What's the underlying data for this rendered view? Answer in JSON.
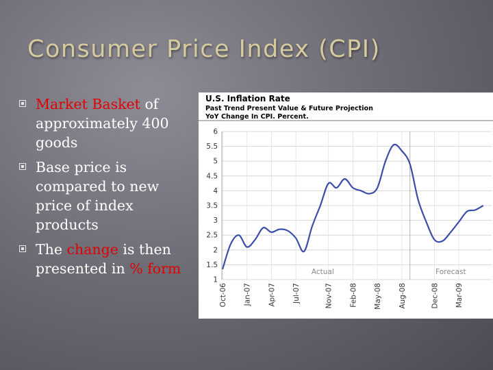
{
  "slide": {
    "title": "Consumer Price Index (CPI)"
  },
  "bullets": [
    {
      "parts": [
        {
          "text": "Market Basket",
          "highlight": true
        },
        {
          "text": " of approximately 400 goods",
          "highlight": false
        }
      ]
    },
    {
      "parts": [
        {
          "text": "Base price is compared to new price of index products",
          "highlight": false
        }
      ]
    },
    {
      "parts": [
        {
          "text": "The ",
          "highlight": false
        },
        {
          "text": "change",
          "highlight": true
        },
        {
          "text": " is then presented in ",
          "highlight": false
        },
        {
          "text": "% form",
          "highlight": true
        }
      ]
    }
  ],
  "colors": {
    "highlight": "#e00000",
    "line": "#3a4daa",
    "title": "#d6cb9e"
  },
  "chart_data": {
    "type": "line",
    "title": "U.S. Inflation Rate",
    "subtitle_lines": [
      "Past Trend Present Value & Future Projection",
      "YoY Change In CPI. Percent."
    ],
    "ylim": [
      1,
      6
    ],
    "yticks": [
      1,
      1.5,
      2,
      2.5,
      3,
      3.5,
      4,
      4.5,
      5,
      5.5,
      6
    ],
    "xtick_labels": [
      "Oct-06",
      "Jan-07",
      "Apr-07",
      "Jul-07",
      "Nov-07",
      "Feb-08",
      "May-08",
      "Aug-08",
      "Dec-08",
      "Mar-09"
    ],
    "grid": true,
    "annotations": [
      {
        "text": "Actual"
      },
      {
        "text": "Forecast"
      }
    ],
    "forecast_start": "Sep-08",
    "series": [
      {
        "points": [
          [
            "Oct-06",
            1.35
          ],
          [
            "Nov-06",
            2.2
          ],
          [
            "Dec-06",
            2.5
          ],
          [
            "Jan-07",
            2.1
          ],
          [
            "Feb-07",
            2.35
          ],
          [
            "Mar-07",
            2.75
          ],
          [
            "Apr-07",
            2.6
          ],
          [
            "May-07",
            2.7
          ],
          [
            "Jun-07",
            2.65
          ],
          [
            "Jul-07",
            2.4
          ],
          [
            "Aug-07",
            1.95
          ],
          [
            "Sep-07",
            2.8
          ],
          [
            "Oct-07",
            3.5
          ],
          [
            "Nov-07",
            4.25
          ],
          [
            "Dec-07",
            4.1
          ],
          [
            "Jan-08",
            4.4
          ],
          [
            "Feb-08",
            4.1
          ],
          [
            "Mar-08",
            4.0
          ],
          [
            "Apr-08",
            3.9
          ],
          [
            "May-08",
            4.1
          ],
          [
            "Jun-08",
            5.0
          ],
          [
            "Jul-08",
            5.55
          ],
          [
            "Aug-08",
            5.35
          ],
          [
            "Sep-08",
            4.9
          ],
          [
            "Oct-08",
            3.7
          ],
          [
            "Nov-08",
            2.95
          ],
          [
            "Dec-08",
            2.35
          ],
          [
            "Jan-09",
            2.3
          ],
          [
            "Feb-09",
            2.6
          ],
          [
            "Mar-09",
            2.95
          ],
          [
            "Apr-09",
            3.3
          ],
          [
            "May-09",
            3.35
          ],
          [
            "Jun-09",
            3.5
          ]
        ]
      }
    ]
  }
}
